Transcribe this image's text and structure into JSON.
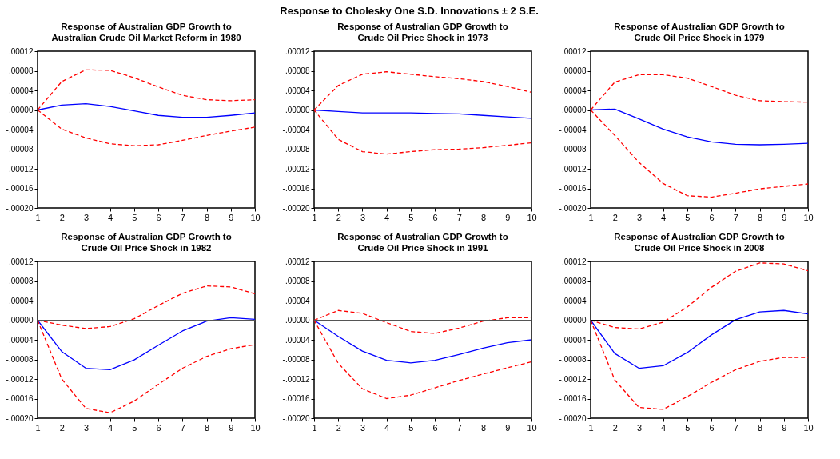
{
  "chart_data": [
    {
      "type": "line",
      "title": "Response of Australian GDP Growth to Australian Crude Oil Market Reform in 1980",
      "annotations": [
        "Response to Cholesky One S.D. Innovations ± 2 S.E."
      ],
      "x": [
        1,
        2,
        3,
        4,
        5,
        6,
        7,
        8,
        9,
        10
      ],
      "xlim": [
        1,
        10
      ],
      "xticks": [
        1,
        2,
        3,
        4,
        5,
        6,
        7,
        8,
        9,
        10
      ],
      "ylim": [
        -0.0002,
        0.00012
      ],
      "yticks": [
        {
          "value": 0.00012,
          "label": ".00012"
        },
        {
          "value": 8e-05,
          "label": ".00008"
        },
        {
          "value": 4e-05,
          "label": ".00004"
        },
        {
          "value": 0,
          "label": ".00000"
        },
        {
          "value": -4e-05,
          "label": "-.00004"
        },
        {
          "value": -8e-05,
          "label": "-.00008"
        },
        {
          "value": -0.00012,
          "label": "-.00012"
        },
        {
          "value": -0.00016,
          "label": "-.00016"
        },
        {
          "value": -0.0002,
          "label": "-.00020"
        }
      ],
      "grid": false,
      "legend": false,
      "ref_lines": [
        {
          "axis": "y",
          "value": 0,
          "color": "#000000"
        }
      ],
      "series": [
        {
          "color": "#0000ff",
          "line_style": "solid",
          "values": [
            0,
            1e-05,
            1.3e-05,
            7e-06,
            -2e-06,
            -1.1e-05,
            -1.5e-05,
            -1.5e-05,
            -1.1e-05,
            -6e-06
          ]
        },
        {
          "color": "#ff0000",
          "line_style": "dashed",
          "values": [
            0,
            5.8e-05,
            8.2e-05,
            8.1e-05,
            6.6e-05,
            4.7e-05,
            3e-05,
            2.1e-05,
            1.9e-05,
            2.1e-05
          ]
        },
        {
          "color": "#ff0000",
          "line_style": "dashed",
          "values": [
            0,
            -3.9e-05,
            -5.7e-05,
            -6.9e-05,
            -7.3e-05,
            -7.1e-05,
            -6.2e-05,
            -5.2e-05,
            -4.3e-05,
            -3.5e-05
          ]
        }
      ]
    },
    {
      "type": "line",
      "title": "Response of Australian GDP Growth to Crude Oil Price Shock in 1973",
      "x": [
        1,
        2,
        3,
        4,
        5,
        6,
        7,
        8,
        9,
        10
      ],
      "xlim": [
        1,
        10
      ],
      "xticks": [
        1,
        2,
        3,
        4,
        5,
        6,
        7,
        8,
        9,
        10
      ],
      "ylim": [
        -0.0002,
        0.00012
      ],
      "yticks": [
        {
          "value": 0.00012,
          "label": ".00012"
        },
        {
          "value": 8e-05,
          "label": ".00008"
        },
        {
          "value": 4e-05,
          "label": ".00004"
        },
        {
          "value": 0,
          "label": ".00000"
        },
        {
          "value": -4e-05,
          "label": "-.00004"
        },
        {
          "value": -8e-05,
          "label": "-.00008"
        },
        {
          "value": -0.00012,
          "label": "-.00012"
        },
        {
          "value": -0.00016,
          "label": "-.00016"
        },
        {
          "value": -0.0002,
          "label": "-.00020"
        }
      ],
      "grid": false,
      "legend": false,
      "ref_lines": [
        {
          "axis": "y",
          "value": 0,
          "color": "#000000"
        }
      ],
      "series": [
        {
          "color": "#0000ff",
          "line_style": "solid",
          "values": [
            0,
            -3e-06,
            -6e-06,
            -6e-06,
            -6e-06,
            -7e-06,
            -8e-06,
            -1.1e-05,
            -1.4e-05,
            -1.7e-05
          ]
        },
        {
          "color": "#ff0000",
          "line_style": "dashed",
          "values": [
            0,
            5e-05,
            7.3e-05,
            7.8e-05,
            7.3e-05,
            6.8e-05,
            6.4e-05,
            5.8e-05,
            4.8e-05,
            3.6e-05
          ]
        },
        {
          "color": "#ff0000",
          "line_style": "dashed",
          "values": [
            0,
            -6e-05,
            -8.5e-05,
            -9e-05,
            -8.5e-05,
            -8.1e-05,
            -8e-05,
            -7.7e-05,
            -7.2e-05,
            -6.7e-05
          ]
        }
      ]
    },
    {
      "type": "line",
      "title": "Response of Australian GDP Growth to Crude Oil Price Shock in 1979",
      "x": [
        1,
        2,
        3,
        4,
        5,
        6,
        7,
        8,
        9,
        10
      ],
      "xlim": [
        1,
        10
      ],
      "xticks": [
        1,
        2,
        3,
        4,
        5,
        6,
        7,
        8,
        9,
        10
      ],
      "ylim": [
        -0.0002,
        0.00012
      ],
      "yticks": [
        {
          "value": 0.00012,
          "label": ".00012"
        },
        {
          "value": 8e-05,
          "label": ".00008"
        },
        {
          "value": 4e-05,
          "label": ".00004"
        },
        {
          "value": 0,
          "label": ".00000"
        },
        {
          "value": -4e-05,
          "label": "-.00004"
        },
        {
          "value": -8e-05,
          "label": "-.00008"
        },
        {
          "value": -0.00012,
          "label": "-.00012"
        },
        {
          "value": -0.00016,
          "label": "-.00016"
        },
        {
          "value": -0.0002,
          "label": "-.00020"
        }
      ],
      "grid": false,
      "legend": false,
      "ref_lines": [
        {
          "axis": "y",
          "value": 0,
          "color": "#555555"
        }
      ],
      "series": [
        {
          "color": "#0000ff",
          "line_style": "solid",
          "values": [
            0,
            2e-06,
            -1.8e-05,
            -3.9e-05,
            -5.5e-05,
            -6.5e-05,
            -7e-05,
            -7.1e-05,
            -7e-05,
            -6.8e-05
          ]
        },
        {
          "color": "#ff0000",
          "line_style": "dashed",
          "values": [
            0,
            5.7e-05,
            7.2e-05,
            7.2e-05,
            6.5e-05,
            4.8e-05,
            3e-05,
            1.9e-05,
            1.7e-05,
            1.6e-05
          ]
        },
        {
          "color": "#ff0000",
          "line_style": "dashed",
          "values": [
            0,
            -5.2e-05,
            -0.000107,
            -0.00015,
            -0.000175,
            -0.000178,
            -0.00017,
            -0.000161,
            -0.000156,
            -0.000151
          ]
        }
      ]
    },
    {
      "type": "line",
      "title": "Response of Australian GDP Growth to Crude Oil Price Shock in 1982",
      "x": [
        1,
        2,
        3,
        4,
        5,
        6,
        7,
        8,
        9,
        10
      ],
      "xlim": [
        1,
        10
      ],
      "xticks": [
        1,
        2,
        3,
        4,
        5,
        6,
        7,
        8,
        9,
        10
      ],
      "ylim": [
        -0.0002,
        0.00012
      ],
      "yticks": [
        {
          "value": 0.00012,
          "label": ".00012"
        },
        {
          "value": 8e-05,
          "label": ".00008"
        },
        {
          "value": 4e-05,
          "label": ".00004"
        },
        {
          "value": 0,
          "label": ".00000"
        },
        {
          "value": -4e-05,
          "label": "-.00004"
        },
        {
          "value": -8e-05,
          "label": "-.00008"
        },
        {
          "value": -0.00012,
          "label": "-.00012"
        },
        {
          "value": -0.00016,
          "label": "-.00016"
        },
        {
          "value": -0.0002,
          "label": "-.00020"
        }
      ],
      "grid": false,
      "legend": false,
      "ref_lines": [
        {
          "axis": "y",
          "value": 0,
          "color": "#555555"
        }
      ],
      "series": [
        {
          "color": "#0000ff",
          "line_style": "solid",
          "values": [
            0,
            -6.4e-05,
            -9.8e-05,
            -0.000101,
            -8.1e-05,
            -5.1e-05,
            -2.2e-05,
            -2e-06,
            5e-06,
            2e-06
          ]
        },
        {
          "color": "#ff0000",
          "line_style": "dashed",
          "values": [
            0,
            -1e-05,
            -1.7e-05,
            -1.3e-05,
            3e-06,
            3e-05,
            5.5e-05,
            7e-05,
            6.8e-05,
            5.4e-05
          ]
        },
        {
          "color": "#ff0000",
          "line_style": "dashed",
          "values": [
            0,
            -0.00012,
            -0.00018,
            -0.000189,
            -0.000165,
            -0.000131,
            -9.8e-05,
            -7.4e-05,
            -5.8e-05,
            -5e-05
          ]
        }
      ]
    },
    {
      "type": "line",
      "title": "Response of Australian GDP Growth to Crude Oil Price Shock in 1991",
      "x": [
        1,
        2,
        3,
        4,
        5,
        6,
        7,
        8,
        9,
        10
      ],
      "xlim": [
        1,
        10
      ],
      "xticks": [
        1,
        2,
        3,
        4,
        5,
        6,
        7,
        8,
        9,
        10
      ],
      "ylim": [
        -0.0002,
        0.00012
      ],
      "yticks": [
        {
          "value": 0.00012,
          "label": ".00012"
        },
        {
          "value": 8e-05,
          "label": ".00008"
        },
        {
          "value": 4e-05,
          "label": ".00004"
        },
        {
          "value": 0,
          "label": ".00000"
        },
        {
          "value": -4e-05,
          "label": "-.00004"
        },
        {
          "value": -8e-05,
          "label": "-.00008"
        },
        {
          "value": -0.00012,
          "label": "-.00012"
        },
        {
          "value": -0.00016,
          "label": "-.00016"
        },
        {
          "value": -0.0002,
          "label": "-.00020"
        }
      ],
      "grid": false,
      "legend": false,
      "ref_lines": [
        {
          "axis": "y",
          "value": 0,
          "color": "#555555"
        }
      ],
      "series": [
        {
          "color": "#0000ff",
          "line_style": "solid",
          "values": [
            0,
            -3.3e-05,
            -6.3e-05,
            -8.2e-05,
            -8.7e-05,
            -8.2e-05,
            -7e-05,
            -5.7e-05,
            -4.6e-05,
            -4e-05
          ]
        },
        {
          "color": "#ff0000",
          "line_style": "dashed",
          "values": [
            0,
            2e-05,
            1.4e-05,
            -5e-06,
            -2.3e-05,
            -2.7e-05,
            -1.6e-05,
            -2e-06,
            5e-06,
            5e-06
          ]
        },
        {
          "color": "#ff0000",
          "line_style": "dashed",
          "values": [
            0,
            -8.8e-05,
            -0.00014,
            -0.00016,
            -0.000153,
            -0.000138,
            -0.000123,
            -0.00011,
            -9.7e-05,
            -8.5e-05
          ]
        }
      ]
    },
    {
      "type": "line",
      "title": "Response of Australian GDP Growth to Crude Oil Price Shock in 2008",
      "x": [
        1,
        2,
        3,
        4,
        5,
        6,
        7,
        8,
        9,
        10
      ],
      "xlim": [
        1,
        10
      ],
      "xticks": [
        1,
        2,
        3,
        4,
        5,
        6,
        7,
        8,
        9,
        10
      ],
      "ylim": [
        -0.0002,
        0.00012
      ],
      "yticks": [
        {
          "value": 0.00012,
          "label": ".00012"
        },
        {
          "value": 8e-05,
          "label": ".00008"
        },
        {
          "value": 4e-05,
          "label": ".00004"
        },
        {
          "value": 0,
          "label": ".00000"
        },
        {
          "value": -4e-05,
          "label": "-.00004"
        },
        {
          "value": -8e-05,
          "label": "-.00008"
        },
        {
          "value": -0.00012,
          "label": "-.00012"
        },
        {
          "value": -0.00016,
          "label": "-.00016"
        },
        {
          "value": -0.0002,
          "label": "-.00020"
        }
      ],
      "grid": false,
      "legend": false,
      "ref_lines": [
        {
          "axis": "y",
          "value": 0,
          "color": "#000000"
        }
      ],
      "series": [
        {
          "color": "#0000ff",
          "line_style": "solid",
          "values": [
            0,
            -6.8e-05,
            -9.8e-05,
            -9.3e-05,
            -6.6e-05,
            -3e-05,
            1e-06,
            1.7e-05,
            2e-05,
            1.3e-05
          ]
        },
        {
          "color": "#ff0000",
          "line_style": "dashed",
          "values": [
            0,
            -1.5e-05,
            -1.8e-05,
            -4e-06,
            2.7e-05,
            6.7e-05,
            0.0001,
            0.000117,
            0.000115,
            0.000101
          ]
        },
        {
          "color": "#ff0000",
          "line_style": "dashed",
          "values": [
            0,
            -0.000122,
            -0.000178,
            -0.000182,
            -0.000156,
            -0.000127,
            -0.000101,
            -8.4e-05,
            -7.6e-05,
            -7.6e-05
          ]
        }
      ]
    }
  ]
}
